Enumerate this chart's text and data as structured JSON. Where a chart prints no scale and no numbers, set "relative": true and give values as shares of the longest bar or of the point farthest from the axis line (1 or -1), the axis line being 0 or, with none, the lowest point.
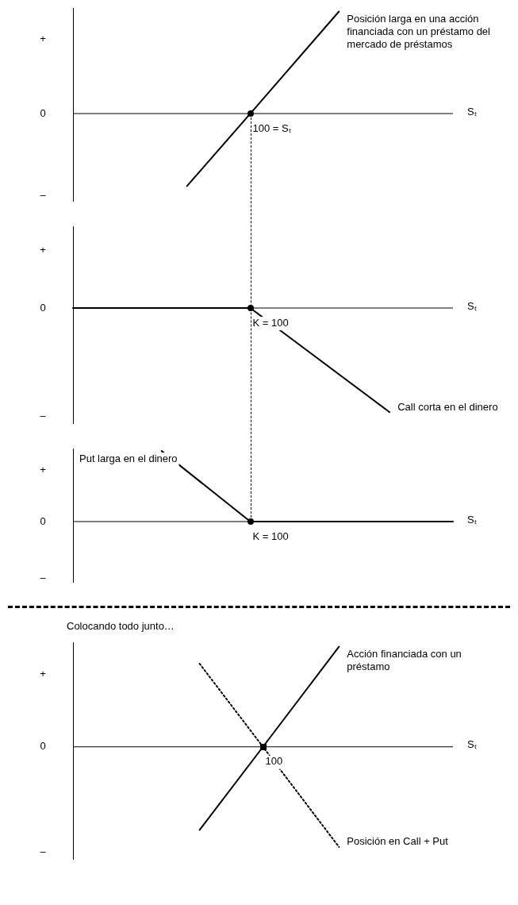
{
  "chart_data": [
    {
      "type": "line",
      "relative": true,
      "xlabel": "Sₜ",
      "categories": [
        null,
        null,
        null,
        null,
        null,
        null,
        null,
        null,
        null,
        null,
        null,
        null,
        null,
        null,
        null,
        null,
        null,
        null,
        null,
        null,
        null,
        null,
        null,
        null,
        null,
        null,
        null,
        null,
        null,
        null,
        null
      ],
      "annotations": [
        "+",
        "0",
        "–",
        "100 = Sₜ"
      ],
      "series": [
        {
          "name": "Posición larga en una acción financiada con un préstamo del mercado de préstamos",
          "color": "#000000",
          "values": [
            null,
            null,
            null,
            null,
            null,
            null,
            null,
            null,
            null,
            -0.71,
            null,
            null,
            null,
            null,
            0,
            null,
            null,
            null,
            null,
            null,
            null,
            1,
            null,
            null,
            null,
            null,
            null,
            null,
            null,
            null,
            null
          ]
        }
      ]
    },
    {
      "type": "line",
      "relative": true,
      "xlabel": "Sₜ",
      "categories": [
        null,
        null,
        null,
        null,
        null,
        null,
        null,
        null,
        null,
        null,
        null,
        null,
        null,
        null,
        null,
        null,
        null,
        null,
        null,
        null,
        null,
        null,
        null,
        null,
        null,
        null,
        null,
        null,
        null,
        null,
        null
      ],
      "annotations": [
        "+",
        "0",
        "–",
        "K = 100"
      ],
      "series": [
        {
          "name": "Call corta en el dinero",
          "color": "#000000",
          "values": [
            0,
            0,
            0,
            0,
            0,
            0,
            0,
            0,
            0,
            0,
            0,
            0,
            0,
            0,
            0,
            null,
            null,
            null,
            null,
            null,
            null,
            null,
            null,
            null,
            null,
            -1,
            null,
            null,
            null,
            null,
            null
          ]
        }
      ]
    },
    {
      "type": "line",
      "relative": true,
      "xlabel": "Sₜ",
      "categories": [
        null,
        null,
        null,
        null,
        null,
        null,
        null,
        null,
        null,
        null,
        null,
        null,
        null,
        null,
        null,
        null,
        null,
        null,
        null,
        null,
        null,
        null,
        null,
        null,
        null,
        null,
        null,
        null,
        null,
        null,
        null
      ],
      "annotations": [
        "+",
        "0",
        "–",
        "K = 100"
      ],
      "series": [
        {
          "name": "Put larga en el dinero",
          "color": "#000000",
          "values": [
            null,
            null,
            null,
            null,
            null,
            null,
            null,
            1,
            null,
            null,
            null,
            null,
            null,
            null,
            0,
            null,
            null,
            null,
            null,
            null,
            null,
            null,
            null,
            null,
            null,
            null,
            null,
            null,
            null,
            null,
            0
          ]
        }
      ]
    },
    {
      "type": "line",
      "relative": true,
      "title": "Colocando todo junto…",
      "xlabel": "Sₜ",
      "categories": [
        null,
        null,
        null,
        null,
        null,
        null,
        null,
        null,
        null,
        null,
        null,
        null,
        null,
        null,
        null,
        null,
        null,
        null,
        null,
        null,
        null,
        null,
        null,
        null,
        null,
        null,
        null,
        null,
        null,
        null,
        null
      ],
      "annotations": [
        "+",
        "0",
        "–",
        "100"
      ],
      "series": [
        {
          "name": "Acción financiada con un préstamo",
          "color": "#000000",
          "values": [
            null,
            null,
            null,
            null,
            null,
            null,
            null,
            null,
            null,
            null,
            -0.83,
            null,
            null,
            null,
            null,
            0,
            null,
            null,
            null,
            null,
            null,
            1,
            null,
            null,
            null,
            null,
            null,
            null,
            null,
            null,
            null
          ]
        },
        {
          "name": "Posición en Call + Put",
          "color": "#000000",
          "line_style": "dotted",
          "values": [
            null,
            null,
            null,
            null,
            null,
            null,
            null,
            null,
            null,
            null,
            0.83,
            null,
            null,
            null,
            null,
            0,
            null,
            null,
            null,
            null,
            null,
            -1,
            null,
            null,
            null,
            null,
            null,
            null,
            null,
            null,
            null
          ]
        }
      ]
    }
  ]
}
